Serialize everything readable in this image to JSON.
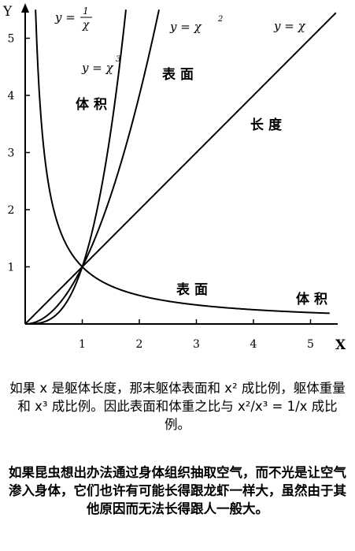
{
  "chart_data": {
    "type": "line",
    "xlabel": "X",
    "ylabel": "Y",
    "xlim": [
      0,
      5.5
    ],
    "ylim": [
      0,
      5.5
    ],
    "xticks": [
      "1",
      "2",
      "3",
      "4",
      "5"
    ],
    "yticks": [
      "1",
      "2",
      "3",
      "4",
      "5"
    ],
    "grid": false,
    "curves": [
      {
        "id": "inverse",
        "expr": "1/x",
        "label_y": "y =",
        "label_num": "1",
        "label_den": "χ"
      },
      {
        "id": "cube",
        "expr": "x^3",
        "label": "y = χ",
        "label_sup": "3"
      },
      {
        "id": "square",
        "expr": "x^2",
        "label": "y = χ",
        "label_sup": "2"
      },
      {
        "id": "linear",
        "expr": "x",
        "label": "y = χ"
      }
    ],
    "annotations": [
      "体积",
      "表面",
      "长度",
      "表面",
      "体积"
    ]
  },
  "caption": {
    "para1": "如果 x 是躯体长度，那末躯体表面和 x² 成比例，躯体重量和 x³ 成比例。因此表面和体重之比与 x²/x³ = 1/x 成比例。",
    "para2": "如果昆虫想出办法通过身体组织抽取空气，而不光是让空气渗入身体，它们也许有可能长得跟龙虾一样大，虽然由于其他原因而无法长得跟人一般大。"
  }
}
